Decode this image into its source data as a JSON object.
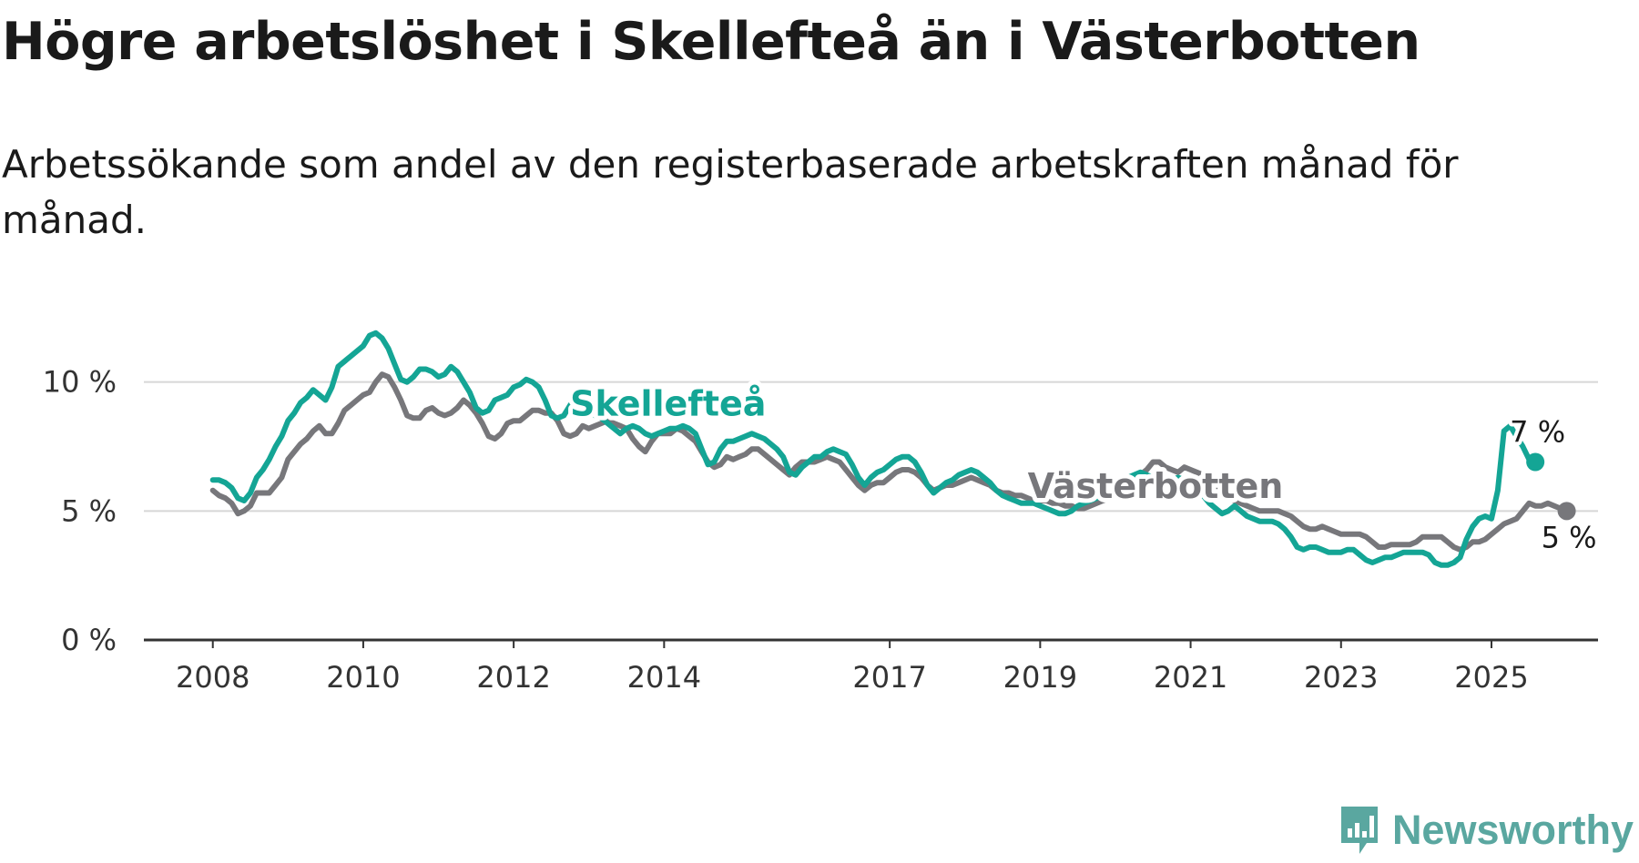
{
  "title": "Högre arbetslöshet i Skellefteå än i Västerbotten",
  "subtitle": "Arbetssökande som andel av den registerbaserade arbetskraften månad för månad.",
  "brand": {
    "name": "Newsworthy",
    "color": "#5aa7a0"
  },
  "chart_data": {
    "type": "line",
    "x_start": "2008-01",
    "frequency": "monthly",
    "xlim": [
      "2007-02",
      "2026-06"
    ],
    "ylim": [
      0,
      12
    ],
    "x_tick_labels": [
      "2008",
      "2010",
      "2012",
      "2014",
      "2017",
      "2019",
      "2021",
      "2023",
      "2025"
    ],
    "y_ticks": [
      0,
      5,
      10
    ],
    "y_tick_labels": [
      "0 %",
      "5 %",
      "10 %"
    ],
    "grid": "horizontal",
    "series": [
      {
        "name": "Västerbotten",
        "color": "#77777b",
        "end_label": "5 %",
        "values": [
          5.8,
          5.6,
          5.5,
          5.3,
          4.9,
          5.0,
          5.2,
          5.7,
          5.7,
          5.7,
          6.0,
          6.3,
          7.0,
          7.3,
          7.6,
          7.8,
          8.1,
          8.3,
          8.0,
          8.0,
          8.4,
          8.9,
          9.1,
          9.3,
          9.5,
          9.6,
          10.0,
          10.3,
          10.2,
          9.8,
          9.3,
          8.7,
          8.6,
          8.6,
          8.9,
          9.0,
          8.8,
          8.7,
          8.8,
          9.0,
          9.3,
          9.1,
          8.8,
          8.4,
          7.9,
          7.8,
          8.0,
          8.4,
          8.5,
          8.5,
          8.7,
          8.9,
          8.9,
          8.8,
          8.8,
          8.5,
          8.0,
          7.9,
          8.0,
          8.3,
          8.2,
          8.3,
          8.4,
          8.5,
          8.4,
          8.3,
          8.2,
          7.8,
          7.5,
          7.3,
          7.7,
          8.0,
          8.0,
          8.0,
          8.2,
          8.1,
          7.9,
          7.7,
          7.3,
          6.9,
          6.7,
          6.8,
          7.1,
          7.0,
          7.1,
          7.2,
          7.4,
          7.4,
          7.2,
          7.0,
          6.8,
          6.6,
          6.4,
          6.7,
          6.9,
          6.9,
          6.9,
          7.0,
          7.1,
          7.0,
          6.9,
          6.6,
          6.3,
          6.0,
          5.8,
          6.0,
          6.1,
          6.1,
          6.3,
          6.5,
          6.6,
          6.6,
          6.5,
          6.3,
          6.0,
          5.8,
          5.9,
          6.0,
          6.0,
          6.1,
          6.2,
          6.3,
          6.2,
          6.1,
          6.0,
          5.8,
          5.7,
          5.7,
          5.6,
          5.6,
          5.5,
          5.4,
          5.4,
          5.4,
          5.3,
          5.3,
          5.2,
          5.2,
          5.1,
          5.1,
          5.2,
          5.3,
          5.4,
          5.5,
          5.6,
          5.8,
          6.0,
          6.2,
          6.4,
          6.6,
          6.9,
          6.9,
          6.7,
          6.6,
          6.5,
          6.7,
          6.6,
          6.5,
          6.4,
          6.2,
          6.0,
          5.7,
          5.5,
          5.4,
          5.3,
          5.2,
          5.1,
          5.0,
          5.0,
          5.0,
          5.0,
          4.9,
          4.8,
          4.6,
          4.4,
          4.3,
          4.3,
          4.4,
          4.3,
          4.2,
          4.1,
          4.1,
          4.1,
          4.1,
          4.0,
          3.8,
          3.6,
          3.6,
          3.7,
          3.7,
          3.7,
          3.7,
          3.8,
          4.0,
          4.0,
          4.0,
          4.0,
          3.8,
          3.6,
          3.5,
          3.6,
          3.8,
          3.8,
          3.9,
          4.1,
          4.3,
          4.5,
          4.6,
          4.7,
          5.0,
          5.3,
          5.2,
          5.2,
          5.3,
          5.2,
          5.1,
          5.0
        ]
      },
      {
        "name": "Skellefteå",
        "color": "#14a595",
        "end_label": "7 %",
        "values": [
          6.2,
          6.2,
          6.1,
          5.9,
          5.5,
          5.4,
          5.7,
          6.3,
          6.6,
          7.0,
          7.5,
          7.9,
          8.5,
          8.8,
          9.2,
          9.4,
          9.7,
          9.5,
          9.3,
          9.8,
          10.6,
          10.8,
          11.0,
          11.2,
          11.4,
          11.8,
          11.9,
          11.7,
          11.3,
          10.7,
          10.1,
          10.0,
          10.2,
          10.5,
          10.5,
          10.4,
          10.2,
          10.3,
          10.6,
          10.4,
          10.0,
          9.6,
          9.0,
          8.8,
          8.9,
          9.3,
          9.4,
          9.5,
          9.8,
          9.9,
          10.1,
          10.0,
          9.8,
          9.3,
          8.7,
          8.6,
          8.7,
          9.1,
          9.4,
          9.3,
          9.0,
          8.7,
          8.6,
          8.4,
          8.2,
          8.0,
          8.2,
          8.3,
          8.2,
          8.0,
          7.9,
          8.0,
          8.1,
          8.2,
          8.2,
          8.3,
          8.2,
          8.0,
          7.4,
          6.8,
          6.9,
          7.4,
          7.7,
          7.7,
          7.8,
          7.9,
          8.0,
          7.9,
          7.8,
          7.6,
          7.4,
          7.1,
          6.5,
          6.4,
          6.7,
          6.9,
          7.1,
          7.1,
          7.3,
          7.4,
          7.3,
          7.2,
          6.8,
          6.3,
          6.0,
          6.3,
          6.5,
          6.6,
          6.8,
          7.0,
          7.1,
          7.1,
          6.9,
          6.5,
          6.0,
          5.7,
          5.9,
          6.1,
          6.2,
          6.4,
          6.5,
          6.6,
          6.5,
          6.3,
          6.1,
          5.8,
          5.6,
          5.5,
          5.4,
          5.3,
          5.3,
          5.3,
          5.2,
          5.1,
          5.0,
          4.9,
          4.9,
          5.0,
          5.2,
          5.3,
          5.4,
          5.5,
          5.6,
          5.8,
          6.0,
          6.2,
          6.3,
          6.4,
          6.5,
          6.4,
          6.3,
          6.2,
          6.1,
          6.2,
          6.3,
          6.2,
          6.1,
          5.9,
          5.6,
          5.3,
          5.1,
          4.9,
          5.0,
          5.2,
          5.0,
          4.8,
          4.7,
          4.6,
          4.6,
          4.6,
          4.5,
          4.3,
          4.0,
          3.6,
          3.5,
          3.6,
          3.6,
          3.5,
          3.4,
          3.4,
          3.4,
          3.5,
          3.5,
          3.3,
          3.1,
          3.0,
          3.1,
          3.2,
          3.2,
          3.3,
          3.4,
          3.4,
          3.4,
          3.4,
          3.3,
          3.0,
          2.9,
          2.9,
          3.0,
          3.2,
          3.9,
          4.4,
          4.7,
          4.8,
          4.7,
          5.8,
          8.1,
          8.3,
          7.9,
          7.5,
          7.0,
          6.9
        ]
      }
    ],
    "annotations": [
      {
        "text": "Skellefteå",
        "series": "Skellefteå",
        "at": "2012-10",
        "value": 9.2
      },
      {
        "text": "Västerbotten",
        "series": "Västerbotten",
        "at": "2018-11",
        "value": 6.0
      }
    ]
  }
}
